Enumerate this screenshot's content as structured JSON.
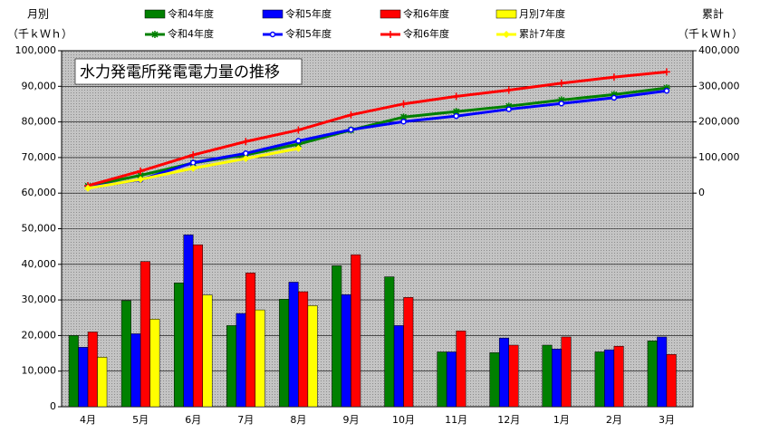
{
  "chart_data": {
    "type": "bar",
    "title": "水力発電所発電電力量の推移",
    "y_label": "月別",
    "y_unit": "（千ｋＷｈ）",
    "y2_label": "累計",
    "y2_unit": "（千ｋＷｈ）",
    "categories": [
      "4月",
      "5月",
      "6月",
      "7月",
      "8月",
      "9月",
      "10月",
      "11月",
      "12月",
      "1月",
      "2月",
      "3月"
    ],
    "ylim": [
      0,
      100000
    ],
    "yticks": [
      0,
      {
        "value": 10000,
        "label": "10,000"
      },
      {
        "value": 20000,
        "label": "20,000"
      },
      {
        "value": 30000,
        "label": "30,000"
      },
      {
        "value": 40000,
        "label": "40,000"
      },
      {
        "value": 50000,
        "label": "50,000"
      },
      {
        "value": 60000,
        "label": "60,000"
      },
      {
        "value": 70000,
        "label": "70,000"
      },
      {
        "value": 80000,
        "label": "80,000"
      },
      {
        "value": 90000,
        "label": "90,000"
      },
      {
        "value": 100000,
        "label": "100,000"
      }
    ],
    "y2lim": [
      -600000,
      400000
    ],
    "y2ticks": [
      0,
      {
        "value": 100000,
        "label": "100,000"
      },
      {
        "value": 200000,
        "label": "200,000"
      },
      {
        "value": 300000,
        "label": "300,000"
      },
      {
        "value": 400000,
        "label": "400,000"
      }
    ],
    "grid": true,
    "series": [
      {
        "name": "令和4年度",
        "type": "bar",
        "color": "#008000",
        "values": [
          20000,
          29800,
          34800,
          22800,
          30200,
          39600,
          36500,
          15400,
          15200,
          17300,
          15400,
          18500
        ]
      },
      {
        "name": "令和5年度",
        "type": "bar",
        "color": "#0000ff",
        "values": [
          16700,
          20500,
          48300,
          26200,
          35000,
          31500,
          22800,
          15400,
          19300,
          16200,
          16000,
          19600
        ]
      },
      {
        "name": "令和6年度",
        "type": "bar",
        "color": "#ff0000",
        "values": [
          21000,
          40800,
          45500,
          37600,
          32300,
          42700,
          30700,
          21300,
          17300,
          19600,
          17000,
          14700
        ]
      },
      {
        "name": "月別7年度",
        "type": "bar",
        "color": "#ffff00",
        "values": [
          13900,
          24600,
          31400,
          27200,
          28400,
          null,
          null,
          null,
          null,
          null,
          null,
          null
        ]
      },
      {
        "name": "令和4年度",
        "type": "line",
        "axis": "y2",
        "marker": "star",
        "color": "#008000",
        "values": [
          20000,
          49800,
          84600,
          107400,
          137600,
          177200,
          213700,
          229100,
          244300,
          261600,
          277000,
          295500
        ]
      },
      {
        "name": "令和5年度",
        "type": "line",
        "axis": "y2",
        "marker": "circle",
        "color": "#0000ff",
        "values": [
          16700,
          37200,
          85500,
          111700,
          146700,
          178200,
          201000,
          216400,
          235700,
          251900,
          267900,
          287500
        ]
      },
      {
        "name": "令和6年度",
        "type": "line",
        "axis": "y2",
        "marker": "plus",
        "color": "#ff0000",
        "values": [
          21000,
          61800,
          107300,
          144900,
          177200,
          219900,
          250600,
          271900,
          289200,
          308800,
          325800,
          340500
        ]
      },
      {
        "name": "累計7年度",
        "type": "line",
        "axis": "y2",
        "marker": "diamond",
        "color": "#ffff00",
        "values": [
          13900,
          38500,
          69900,
          97100,
          125500,
          null,
          null,
          null,
          null,
          null,
          null,
          null
        ]
      }
    ]
  }
}
